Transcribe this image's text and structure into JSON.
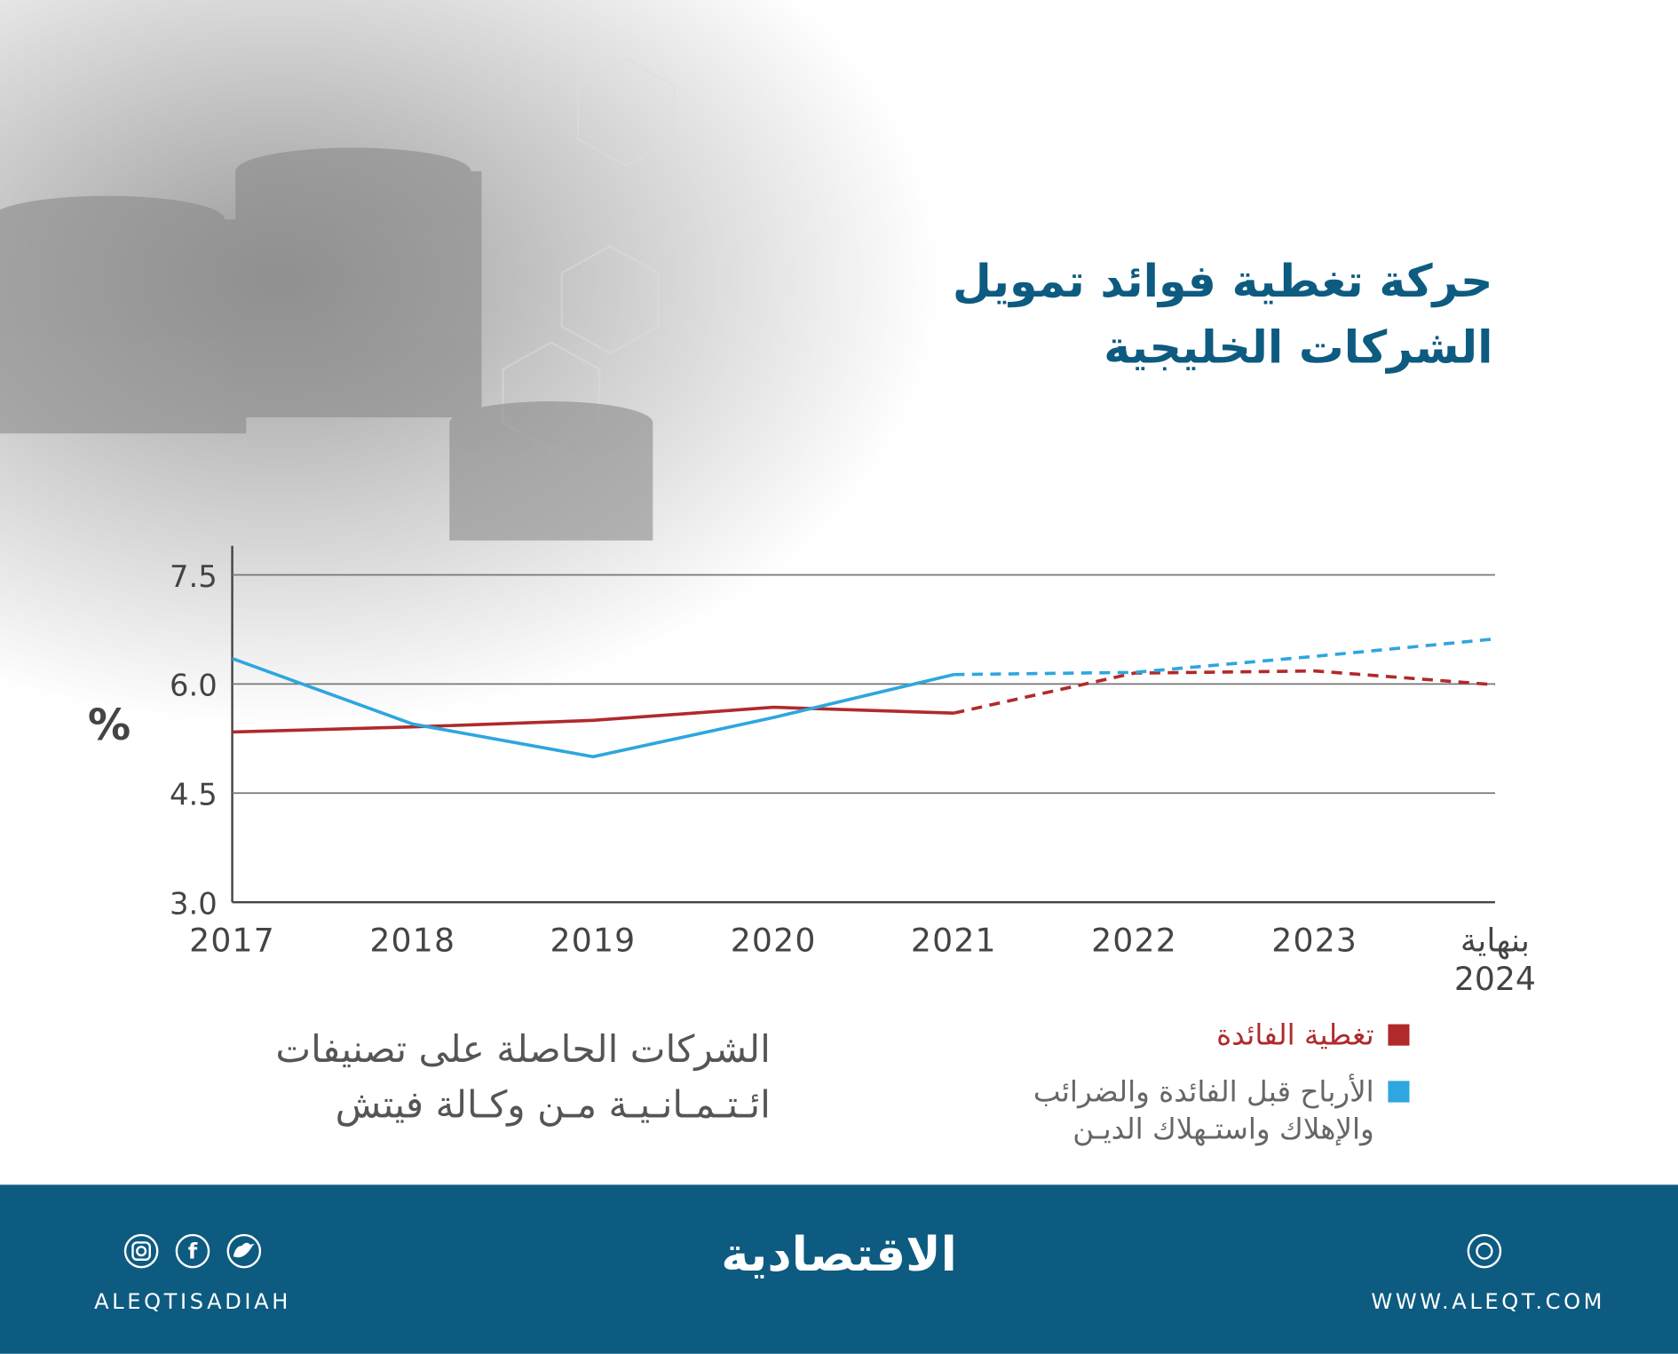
{
  "chart_data": {
    "type": "line",
    "title": "حركة تغطية فوائد تمويل الشركات الخليجية",
    "subtitle": "الشركات الحاصلة على تصنيفات ائـتـمـانـيـة مـن وكـالة فيتش",
    "y_label": "%",
    "categories": [
      "2017",
      "2018",
      "2019",
      "2020",
      "2021",
      "2022",
      "2023",
      "بنهاية 2024"
    ],
    "dashed_from_category": "2021",
    "series": [
      {
        "name": "تغطية الفائدة",
        "color": "#b02a2c",
        "values": [
          5.34,
          5.41,
          5.5,
          5.68,
          5.6,
          6.15,
          6.18,
          5.99
        ]
      },
      {
        "name": "الأرباح قبل الفائدة والضرائب والإهلاك واستـهلاك الديـن",
        "color": "#2ea6df",
        "values": [
          6.35,
          5.45,
          5.0,
          5.54,
          6.13,
          6.16,
          6.38,
          6.62
        ]
      }
    ],
    "ylim": [
      3.0,
      7.9
    ],
    "yticks": [
      {
        "value": 3.0,
        "label": "3.0"
      },
      {
        "value": 4.5,
        "label": "4.5"
      },
      {
        "value": 6.0,
        "label": "6.0"
      },
      {
        "value": 7.5,
        "label": "7.5"
      }
    ],
    "grid": true
  },
  "footer": {
    "social_handle": "ALEQTISADIAH",
    "logo": "الاقتصادية",
    "website": "WWW.ALEQT.COM"
  }
}
